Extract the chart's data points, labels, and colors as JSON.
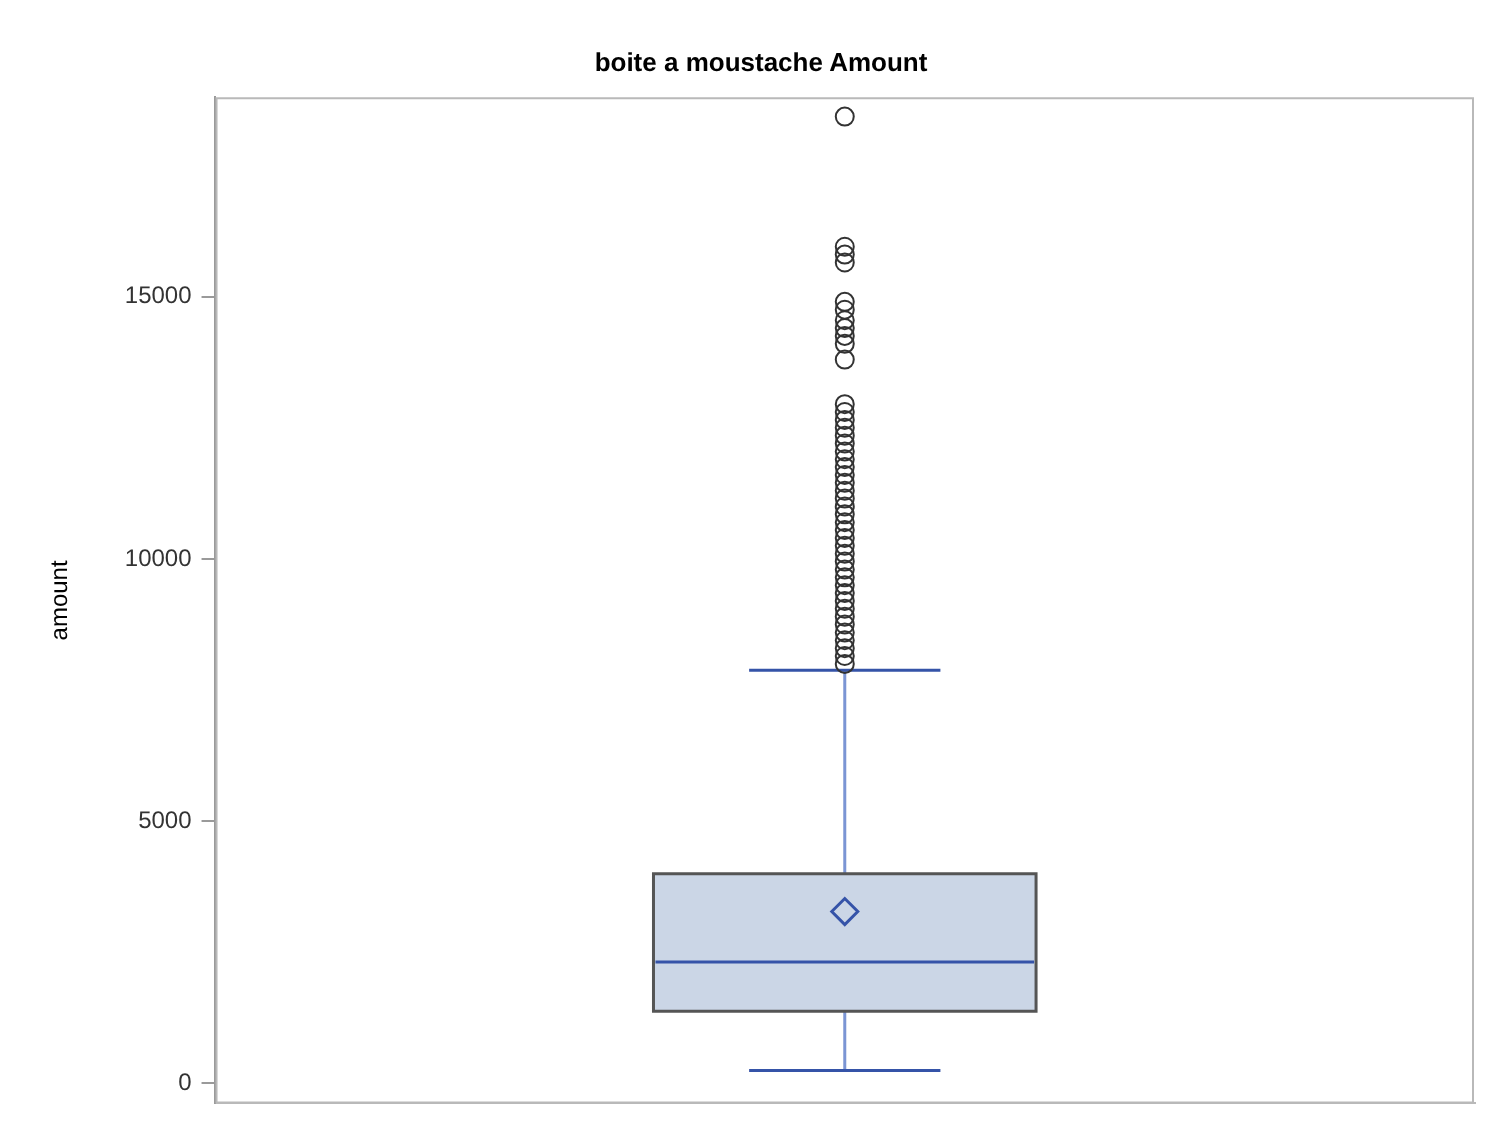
{
  "chart_data": {
    "type": "box",
    "title": "boite a moustache Amount",
    "ylabel": "amount",
    "categories": [
      null
    ],
    "boxes": [
      {
        "low": 250,
        "q1": 1380,
        "median": 2320,
        "q3": 4000,
        "high": 7880,
        "mean": 3280,
        "outliers": [
          18430,
          15950,
          15800,
          15650,
          14900,
          14750,
          14550,
          14400,
          14250,
          14100,
          13800,
          12950,
          12800,
          12650,
          12500,
          12350,
          12200,
          12050,
          11900,
          11750,
          11600,
          11450,
          11300,
          11150,
          11000,
          10850,
          10700,
          10550,
          10400,
          10250,
          10100,
          9950,
          9800,
          9650,
          9500,
          9350,
          9200,
          9050,
          8900,
          8750,
          8600,
          8450,
          8300,
          8150,
          8000
        ]
      }
    ],
    "color": "#cbd6e6",
    "marker": "circle",
    "ylim": [
      -380,
      18800
    ],
    "yticks": [
      0,
      5000,
      10000,
      15000
    ],
    "grid": false,
    "legend": false
  }
}
